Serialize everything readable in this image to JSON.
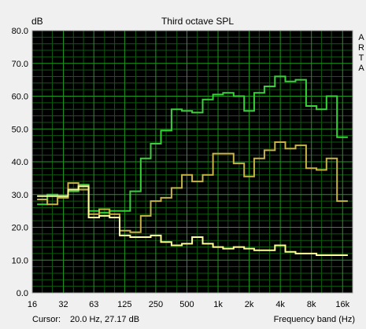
{
  "chart_data": {
    "type": "line",
    "title": "Third octave SPL",
    "ylabel": "dB",
    "xlabel": "Frequency band (Hz)",
    "side_label": "ARTA",
    "cursor_label": "Cursor:",
    "cursor_value": "20.0 Hz, 27.17 dB",
    "x_scale": "log",
    "xlim": [
      16,
      20000
    ],
    "ylim": [
      0,
      80
    ],
    "y_ticks": [
      0,
      10,
      20,
      30,
      40,
      50,
      60,
      70,
      80
    ],
    "y_tick_labels": [
      "0.0",
      "10.0",
      "20.0",
      "30.0",
      "40.0",
      "50.0",
      "60.0",
      "70.0",
      "80.0"
    ],
    "x_ticks": [
      16,
      32,
      63,
      125,
      250,
      500,
      1000,
      2000,
      4000,
      8000,
      16000
    ],
    "x_tick_labels": [
      "16",
      "32",
      "63",
      "125",
      "250",
      "500",
      "1k",
      "2k",
      "4k",
      "8k",
      "16k"
    ],
    "grid": true,
    "bands": [
      20,
      25,
      31.5,
      40,
      50,
      63,
      80,
      100,
      125,
      160,
      200,
      250,
      315,
      400,
      500,
      630,
      800,
      1000,
      1250,
      1600,
      2000,
      2500,
      3150,
      4000,
      5000,
      6300,
      8000,
      10000,
      12500,
      16000
    ],
    "series": [
      {
        "color": "#3ad23a",
        "values": [
          27,
          30,
          29.5,
          31,
          33,
          25,
          24.5,
          25,
          25,
          31,
          41,
          45.5,
          49.5,
          56,
          55.5,
          55,
          59,
          60.5,
          61,
          60,
          55.5,
          61,
          63,
          66,
          64.5,
          65,
          57,
          56,
          60,
          47.5
        ]
      },
      {
        "color": "#c8b446",
        "values": [
          28.5,
          27,
          29,
          33.5,
          31.5,
          24,
          25.5,
          24,
          19,
          18.5,
          23.5,
          28,
          29,
          32,
          36,
          34,
          36,
          42.5,
          42.5,
          39.5,
          35.5,
          41,
          43.5,
          46,
          44,
          45,
          38,
          37.5,
          41,
          28
        ]
      },
      {
        "color": "#ffff99",
        "values": [
          29.5,
          29.5,
          29.5,
          31.5,
          32.5,
          23,
          23.5,
          23,
          17.5,
          17,
          17,
          17.5,
          15.5,
          14.5,
          15,
          17,
          15,
          14,
          13.5,
          14,
          13.5,
          13,
          13,
          14.5,
          12.5,
          12,
          12,
          11.5,
          11.5,
          11.5
        ]
      }
    ]
  }
}
